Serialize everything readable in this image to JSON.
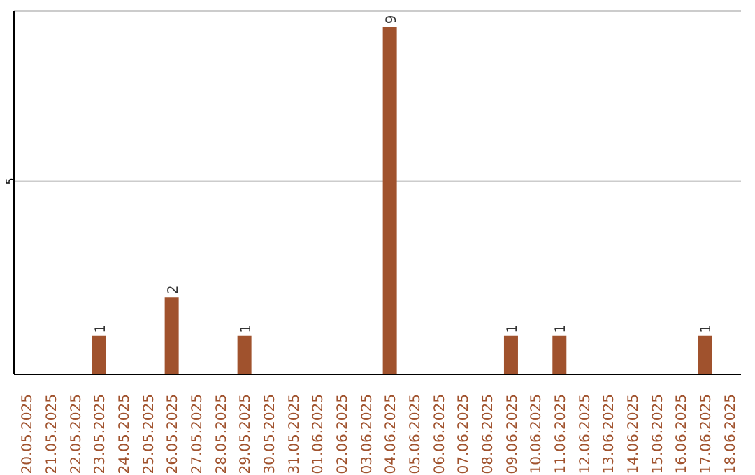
{
  "chart_data": {
    "type": "bar",
    "categories": [
      "20.05.2025",
      "21.05.2025",
      "22.05.2025",
      "23.05.2025",
      "24.05.2025",
      "25.05.2025",
      "26.05.2025",
      "27.05.2025",
      "28.05.2025",
      "29.05.2025",
      "30.05.2025",
      "31.05.2025",
      "01.06.2025",
      "02.06.2025",
      "03.06.2025",
      "04.06.2025",
      "05.06.2025",
      "06.06.2025",
      "07.06.2025",
      "08.06.2025",
      "09.06.2025",
      "10.06.2025",
      "11.06.2025",
      "12.06.2025",
      "13.06.2025",
      "14.06.2025",
      "15.06.2025",
      "16.06.2025",
      "17.06.2025",
      "18.06.2025"
    ],
    "values": [
      0,
      0,
      0,
      1,
      0,
      0,
      2,
      0,
      0,
      1,
      0,
      0,
      0,
      0,
      0,
      9,
      0,
      0,
      0,
      0,
      1,
      0,
      1,
      0,
      0,
      0,
      0,
      0,
      1,
      0
    ],
    "value_labels": [
      null,
      null,
      null,
      "1",
      null,
      null,
      "2",
      null,
      null,
      "1",
      null,
      null,
      null,
      null,
      null,
      "9",
      null,
      null,
      null,
      null,
      "1",
      null,
      "1",
      null,
      null,
      null,
      null,
      null,
      "1",
      null
    ],
    "color": "#a0522d",
    "ylim": [
      0,
      9.4
    ],
    "yticks": [
      5
    ],
    "grid": "y"
  }
}
